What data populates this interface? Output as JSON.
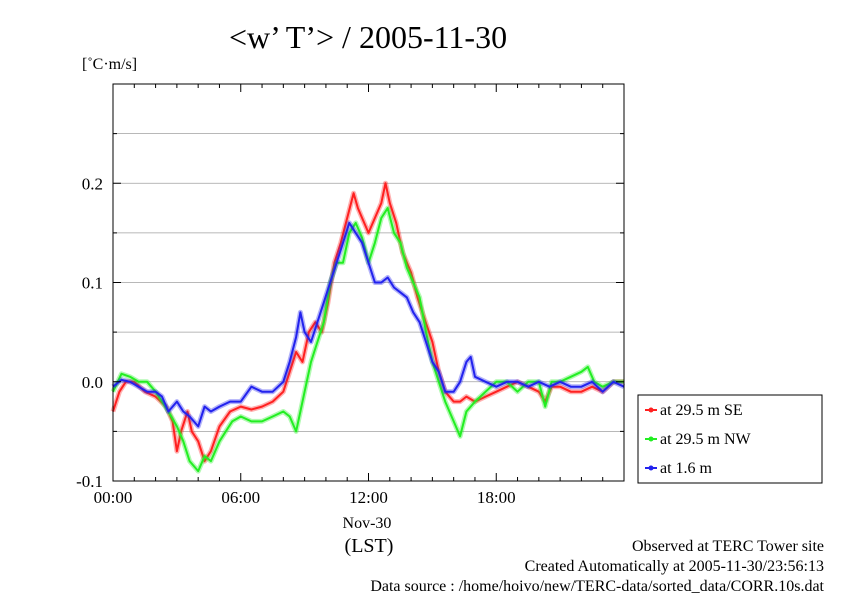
{
  "chart_data": {
    "type": "line",
    "title": "<w’ T’> / 2005-11-30",
    "ylabel": "[˚C·m/s]",
    "xlabel": "(LST)",
    "date_label": "Nov-30",
    "xlim": [
      0,
      24
    ],
    "ylim": [
      -0.1,
      0.3
    ],
    "x_ticks": [
      {
        "value": 0,
        "label": "00:00"
      },
      {
        "value": 6,
        "label": "06:00"
      },
      {
        "value": 12,
        "label": "12:00"
      },
      {
        "value": 18,
        "label": "18:00"
      }
    ],
    "y_ticks": [
      {
        "value": -0.1,
        "label": "-0.1"
      },
      {
        "value": 0.0,
        "label": "0.0"
      },
      {
        "value": 0.1,
        "label": "0.1"
      },
      {
        "value": 0.2,
        "label": "0.2"
      }
    ],
    "grid": true,
    "legend_position": "right",
    "series": [
      {
        "name": "at 29.5 m SE",
        "color": "#ff2020",
        "points": [
          [
            0.0,
            -0.03
          ],
          [
            0.3,
            -0.01
          ],
          [
            0.6,
            0.0
          ],
          [
            1.0,
            0.0
          ],
          [
            1.5,
            -0.01
          ],
          [
            2.0,
            -0.015
          ],
          [
            2.5,
            -0.025
          ],
          [
            2.8,
            -0.04
          ],
          [
            3.0,
            -0.07
          ],
          [
            3.2,
            -0.05
          ],
          [
            3.5,
            -0.03
          ],
          [
            3.7,
            -0.05
          ],
          [
            4.0,
            -0.06
          ],
          [
            4.3,
            -0.08
          ],
          [
            4.6,
            -0.07
          ],
          [
            5.0,
            -0.045
          ],
          [
            5.5,
            -0.03
          ],
          [
            6.0,
            -0.025
          ],
          [
            6.5,
            -0.028
          ],
          [
            7.0,
            -0.025
          ],
          [
            7.5,
            -0.02
          ],
          [
            8.0,
            -0.01
          ],
          [
            8.3,
            0.01
          ],
          [
            8.6,
            0.03
          ],
          [
            8.9,
            0.02
          ],
          [
            9.2,
            0.05
          ],
          [
            9.5,
            0.06
          ],
          [
            9.8,
            0.05
          ],
          [
            10.1,
            0.08
          ],
          [
            10.4,
            0.12
          ],
          [
            10.7,
            0.14
          ],
          [
            11.0,
            0.165
          ],
          [
            11.3,
            0.19
          ],
          [
            11.5,
            0.175
          ],
          [
            11.8,
            0.16
          ],
          [
            12.0,
            0.15
          ],
          [
            12.3,
            0.165
          ],
          [
            12.6,
            0.18
          ],
          [
            12.8,
            0.2
          ],
          [
            13.0,
            0.18
          ],
          [
            13.3,
            0.16
          ],
          [
            13.6,
            0.13
          ],
          [
            14.0,
            0.11
          ],
          [
            14.3,
            0.085
          ],
          [
            14.6,
            0.065
          ],
          [
            15.0,
            0.04
          ],
          [
            15.3,
            0.01
          ],
          [
            15.6,
            -0.01
          ],
          [
            16.0,
            -0.02
          ],
          [
            16.3,
            -0.02
          ],
          [
            16.6,
            -0.015
          ],
          [
            17.0,
            -0.02
          ],
          [
            17.5,
            -0.015
          ],
          [
            18.0,
            -0.01
          ],
          [
            18.5,
            -0.005
          ],
          [
            19.0,
            0.0
          ],
          [
            19.5,
            -0.005
          ],
          [
            20.0,
            -0.01
          ],
          [
            20.3,
            -0.02
          ],
          [
            20.6,
            -0.005
          ],
          [
            21.0,
            -0.005
          ],
          [
            21.5,
            -0.01
          ],
          [
            22.0,
            -0.01
          ],
          [
            22.5,
            -0.005
          ],
          [
            23.0,
            -0.01
          ],
          [
            23.5,
            0.0
          ],
          [
            24.0,
            0.0
          ]
        ]
      },
      {
        "name": "at 29.5 m NW",
        "color": "#22ee22",
        "points": [
          [
            0.0,
            -0.01
          ],
          [
            0.4,
            0.008
          ],
          [
            0.8,
            0.005
          ],
          [
            1.2,
            0.0
          ],
          [
            1.6,
            0.0
          ],
          [
            2.0,
            -0.01
          ],
          [
            2.3,
            -0.02
          ],
          [
            2.6,
            -0.03
          ],
          [
            3.0,
            -0.045
          ],
          [
            3.3,
            -0.06
          ],
          [
            3.6,
            -0.08
          ],
          [
            4.0,
            -0.09
          ],
          [
            4.3,
            -0.075
          ],
          [
            4.6,
            -0.08
          ],
          [
            5.0,
            -0.06
          ],
          [
            5.3,
            -0.05
          ],
          [
            5.6,
            -0.04
          ],
          [
            6.0,
            -0.035
          ],
          [
            6.5,
            -0.04
          ],
          [
            7.0,
            -0.04
          ],
          [
            7.5,
            -0.035
          ],
          [
            8.0,
            -0.03
          ],
          [
            8.3,
            -0.035
          ],
          [
            8.6,
            -0.05
          ],
          [
            8.8,
            -0.03
          ],
          [
            9.0,
            -0.01
          ],
          [
            9.3,
            0.02
          ],
          [
            9.6,
            0.04
          ],
          [
            9.9,
            0.06
          ],
          [
            10.2,
            0.1
          ],
          [
            10.5,
            0.12
          ],
          [
            10.8,
            0.12
          ],
          [
            11.1,
            0.15
          ],
          [
            11.4,
            0.16
          ],
          [
            11.7,
            0.145
          ],
          [
            12.0,
            0.12
          ],
          [
            12.3,
            0.14
          ],
          [
            12.6,
            0.165
          ],
          [
            12.9,
            0.175
          ],
          [
            13.2,
            0.15
          ],
          [
            13.5,
            0.14
          ],
          [
            13.8,
            0.115
          ],
          [
            14.1,
            0.1
          ],
          [
            14.4,
            0.085
          ],
          [
            14.7,
            0.05
          ],
          [
            15.0,
            0.02
          ],
          [
            15.3,
            0.0
          ],
          [
            15.6,
            -0.02
          ],
          [
            16.0,
            -0.04
          ],
          [
            16.3,
            -0.055
          ],
          [
            16.6,
            -0.03
          ],
          [
            17.0,
            -0.02
          ],
          [
            17.5,
            -0.01
          ],
          [
            18.0,
            0.0
          ],
          [
            18.5,
            0.0
          ],
          [
            19.0,
            -0.01
          ],
          [
            19.5,
            0.0
          ],
          [
            20.0,
            0.0
          ],
          [
            20.3,
            -0.025
          ],
          [
            20.6,
            0.0
          ],
          [
            21.0,
            0.0
          ],
          [
            21.5,
            0.005
          ],
          [
            22.0,
            0.01
          ],
          [
            22.3,
            0.015
          ],
          [
            22.6,
            0.0
          ],
          [
            23.0,
            -0.005
          ],
          [
            23.5,
            0.0
          ],
          [
            24.0,
            0.0
          ]
        ]
      },
      {
        "name": "at 1.6 m",
        "color": "#2222ee",
        "points": [
          [
            0.0,
            -0.005
          ],
          [
            0.4,
            0.002
          ],
          [
            0.8,
            0.0
          ],
          [
            1.2,
            -0.005
          ],
          [
            1.6,
            -0.01
          ],
          [
            2.0,
            -0.01
          ],
          [
            2.3,
            -0.015
          ],
          [
            2.6,
            -0.03
          ],
          [
            3.0,
            -0.02
          ],
          [
            3.3,
            -0.03
          ],
          [
            3.6,
            -0.035
          ],
          [
            4.0,
            -0.045
          ],
          [
            4.3,
            -0.025
          ],
          [
            4.6,
            -0.03
          ],
          [
            5.0,
            -0.025
          ],
          [
            5.5,
            -0.02
          ],
          [
            6.0,
            -0.02
          ],
          [
            6.5,
            -0.005
          ],
          [
            7.0,
            -0.01
          ],
          [
            7.5,
            -0.01
          ],
          [
            8.0,
            0.0
          ],
          [
            8.3,
            0.02
          ],
          [
            8.6,
            0.045
          ],
          [
            8.8,
            0.07
          ],
          [
            9.0,
            0.05
          ],
          [
            9.3,
            0.04
          ],
          [
            9.6,
            0.06
          ],
          [
            9.9,
            0.08
          ],
          [
            10.2,
            0.1
          ],
          [
            10.5,
            0.12
          ],
          [
            10.8,
            0.14
          ],
          [
            11.1,
            0.16
          ],
          [
            11.4,
            0.15
          ],
          [
            11.7,
            0.14
          ],
          [
            12.0,
            0.12
          ],
          [
            12.3,
            0.1
          ],
          [
            12.6,
            0.1
          ],
          [
            12.9,
            0.105
          ],
          [
            13.2,
            0.095
          ],
          [
            13.5,
            0.09
          ],
          [
            13.8,
            0.085
          ],
          [
            14.1,
            0.07
          ],
          [
            14.4,
            0.06
          ],
          [
            14.7,
            0.04
          ],
          [
            15.0,
            0.02
          ],
          [
            15.3,
            0.01
          ],
          [
            15.6,
            -0.01
          ],
          [
            16.0,
            -0.01
          ],
          [
            16.3,
            0.0
          ],
          [
            16.6,
            0.02
          ],
          [
            16.8,
            0.025
          ],
          [
            17.0,
            0.005
          ],
          [
            17.5,
            0.0
          ],
          [
            18.0,
            -0.005
          ],
          [
            18.5,
            0.0
          ],
          [
            19.0,
            0.0
          ],
          [
            19.5,
            -0.005
          ],
          [
            20.0,
            0.0
          ],
          [
            20.5,
            -0.005
          ],
          [
            21.0,
            0.0
          ],
          [
            21.5,
            -0.005
          ],
          [
            22.0,
            -0.005
          ],
          [
            22.5,
            0.0
          ],
          [
            23.0,
            -0.01
          ],
          [
            23.5,
            0.0
          ],
          [
            24.0,
            -0.005
          ]
        ]
      }
    ]
  },
  "footer": {
    "line1": "Observed at TERC Tower site",
    "line2": "Created Automatically at 2005-11-30/23:56:13",
    "line3": "Data source : /home/hoivo/new/TERC-data/sorted_data/CORR.10s.dat"
  }
}
